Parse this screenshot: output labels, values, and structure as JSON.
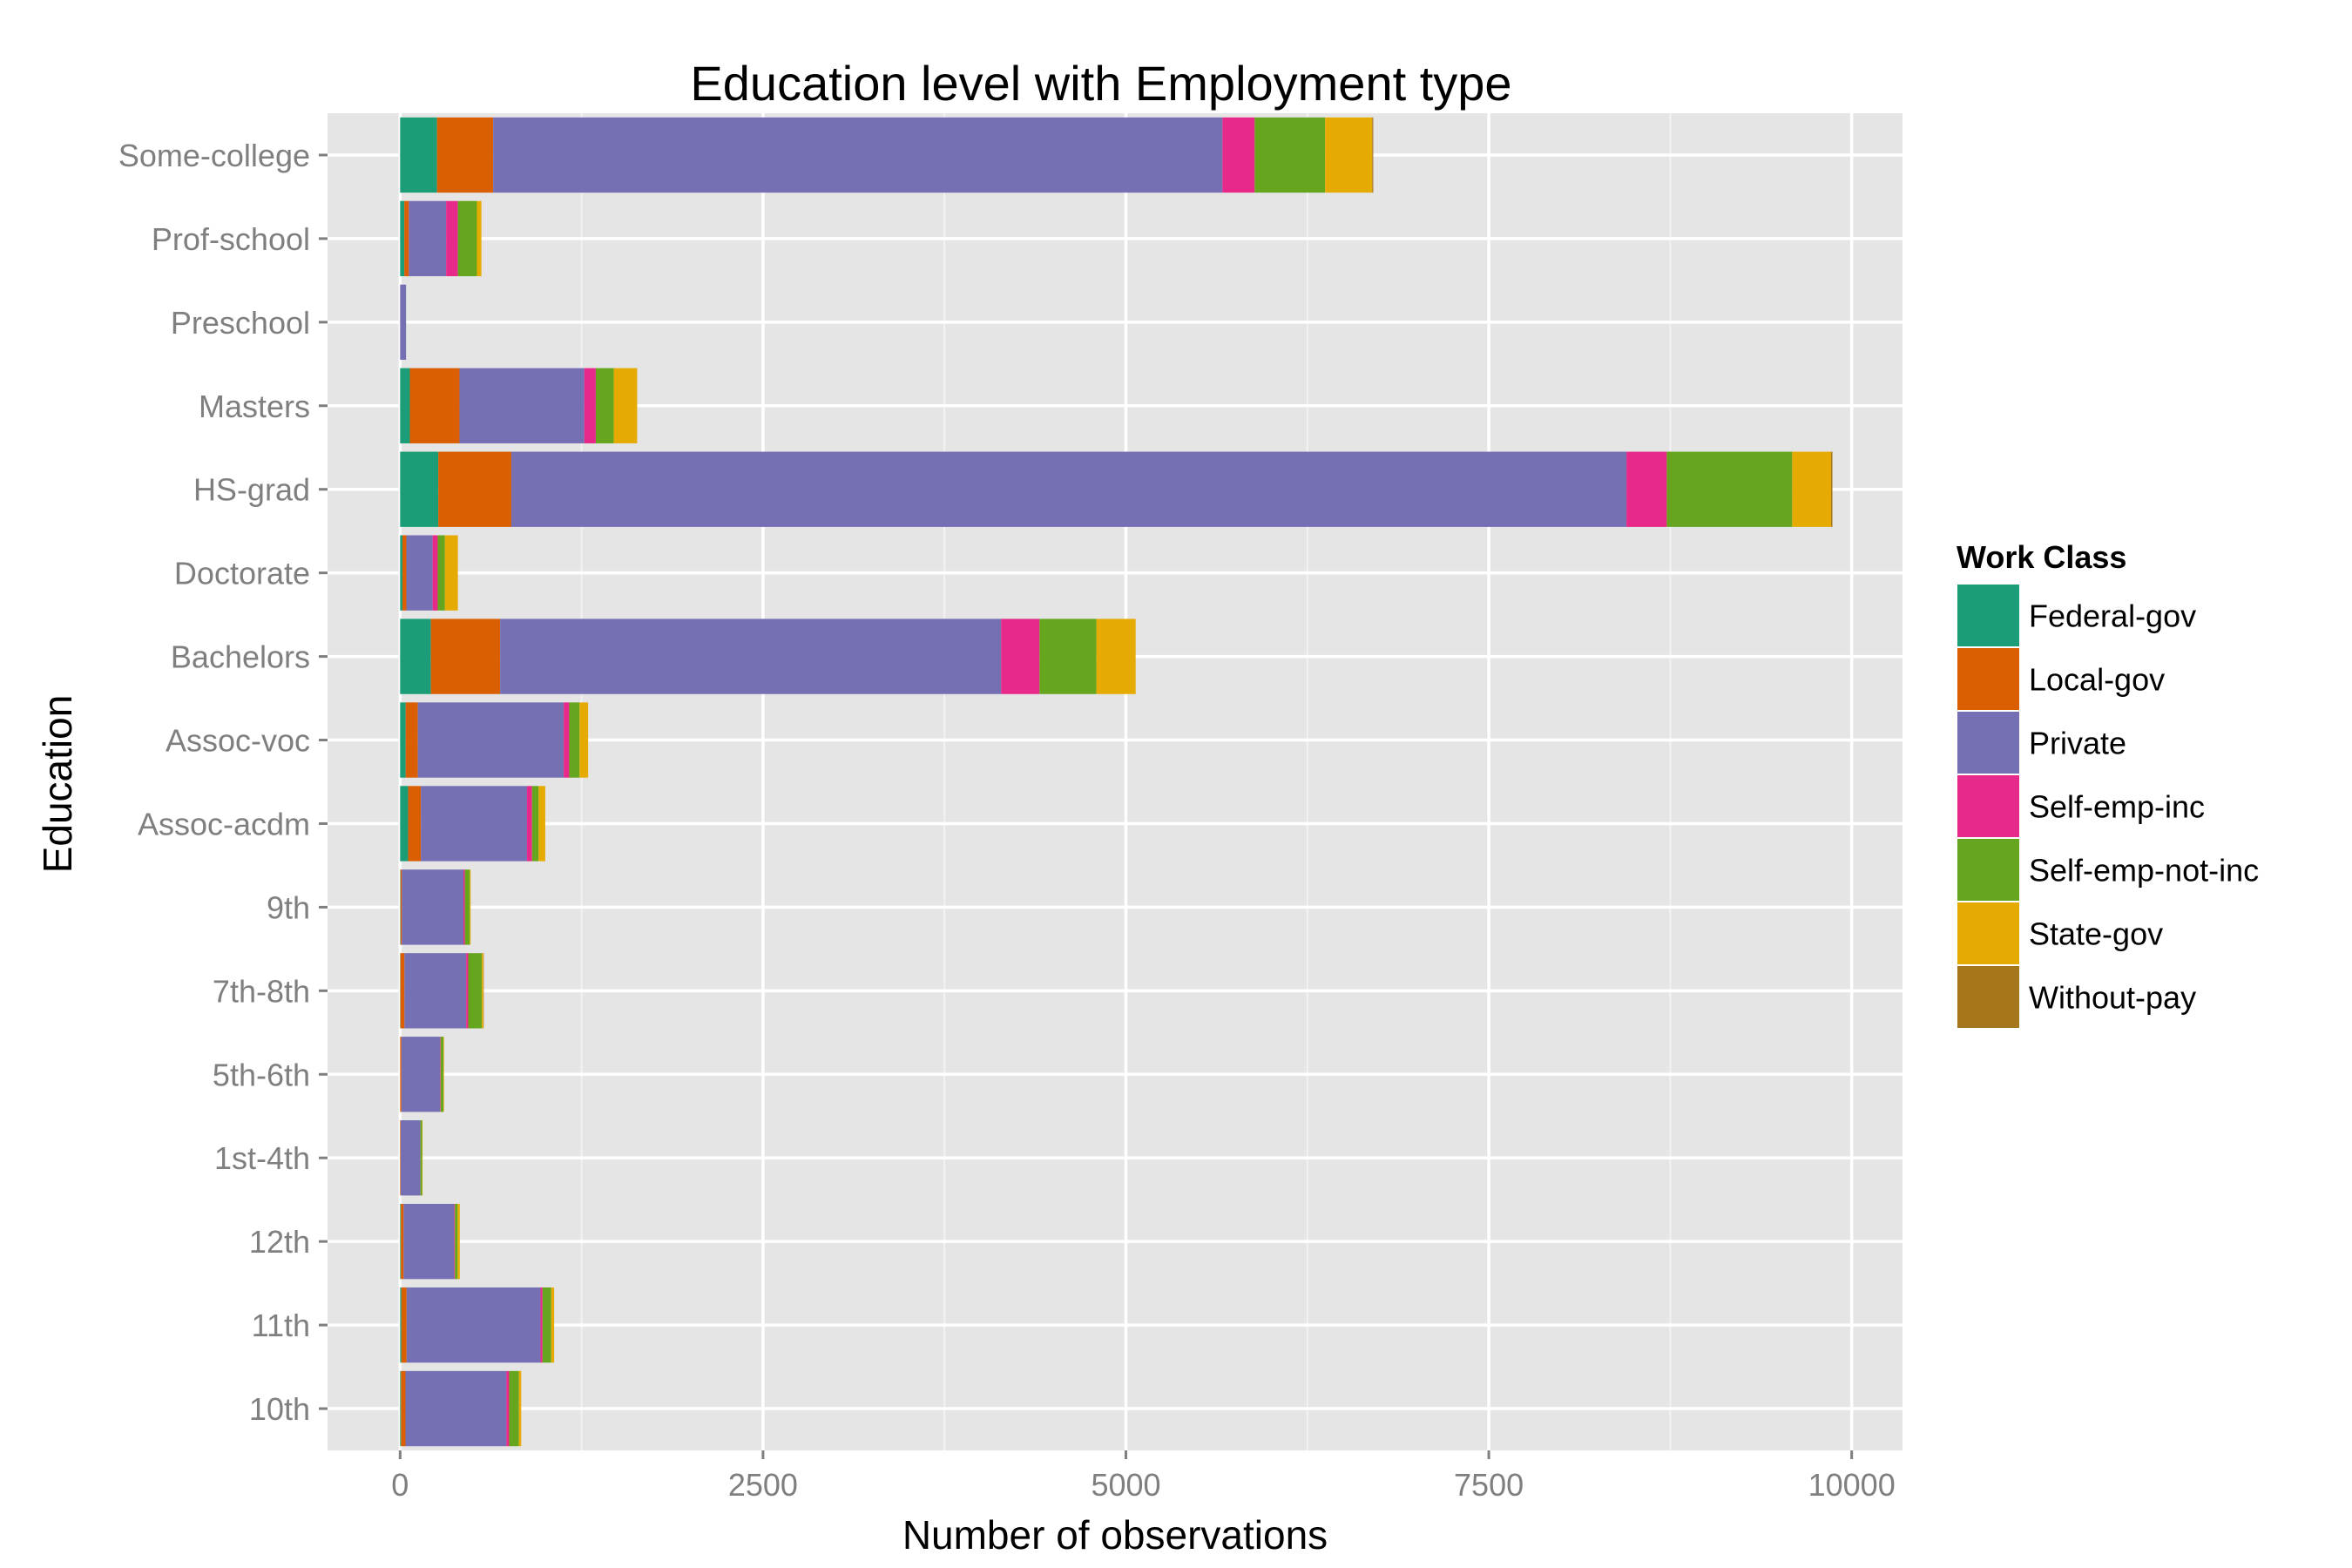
{
  "chart_data": {
    "type": "bar",
    "orientation": "horizontal",
    "stacked": true,
    "title": "Education level with Employment type",
    "xlabel": "Number of observations",
    "ylabel": "Education",
    "xlim": [
      -500,
      10350
    ],
    "xticks": [
      0,
      2500,
      5000,
      7500,
      10000
    ],
    "xtick_labels": [
      "0",
      "2500",
      "5000",
      "7500",
      "10000"
    ],
    "grid": true,
    "legend": {
      "title": "Work Class",
      "position": "right"
    },
    "categories": [
      "Some-college",
      "Prof-school",
      "Preschool",
      "Masters",
      "HS-grad",
      "Doctorate",
      "Bachelors",
      "Assoc-voc",
      "Assoc-acdm",
      "9th",
      "7th-8th",
      "5th-6th",
      "1st-4th",
      "12th",
      "11th",
      "10th"
    ],
    "series": [
      {
        "name": "Federal-gov",
        "color": "#1B9E77",
        "values": [
          254,
          29,
          0,
          67,
          263,
          16,
          212,
          38,
          55,
          3,
          2,
          0,
          0,
          5,
          9,
          6
        ]
      },
      {
        "name": "Local-gov",
        "color": "#D95F02",
        "values": [
          387,
          31,
          0,
          342,
          503,
          27,
          477,
          84,
          88,
          9,
          28,
          9,
          4,
          19,
          36,
          31
        ]
      },
      {
        "name": "Private",
        "color": "#7570B3",
        "values": [
          5024,
          257,
          41,
          860,
          7682,
          181,
          3451,
          1005,
          731,
          424,
          425,
          266,
          136,
          348,
          922,
          695
        ]
      },
      {
        "name": "Self-emp-inc",
        "color": "#E7298A",
        "values": [
          222,
          81,
          0,
          79,
          278,
          35,
          265,
          38,
          35,
          10,
          14,
          4,
          0,
          5,
          14,
          19
        ]
      },
      {
        "name": "Self-emp-not-inc",
        "color": "#66A61E",
        "values": [
          485,
          131,
          0,
          124,
          864,
          50,
          392,
          71,
          45,
          34,
          94,
          19,
          12,
          19,
          60,
          67
        ]
      },
      {
        "name": "State-gov",
        "color": "#E6AB02",
        "values": [
          325,
          31,
          0,
          161,
          268,
          89,
          270,
          59,
          46,
          6,
          10,
          4,
          1,
          15,
          20,
          16
        ]
      },
      {
        "name": "Without-pay",
        "color": "#A6761D",
        "values": [
          7,
          0,
          0,
          0,
          9,
          0,
          0,
          0,
          0,
          0,
          1,
          0,
          0,
          0,
          0,
          0
        ]
      }
    ]
  }
}
